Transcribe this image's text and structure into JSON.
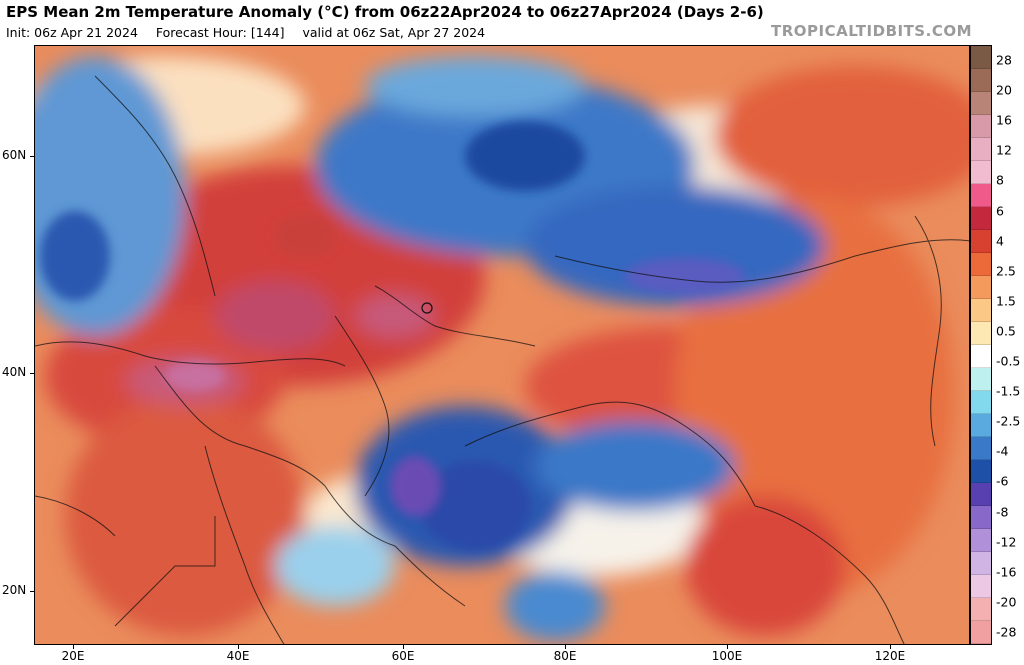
{
  "header": {
    "title": "EPS Mean 2m Temperature Anomaly (°C) from 06z22Apr2024 to 06z27Apr2024 (Days 2-6)",
    "init": "Init: 06z Apr 21 2024",
    "forecast_hour": "Forecast Hour: [144]",
    "valid": "valid at 06z Sat, Apr 27 2024",
    "brand": "TROPICALTIDBITS.COM"
  },
  "axes": {
    "lat_labels": [
      "60N",
      "40N",
      "20N"
    ],
    "lon_labels": [
      "20E",
      "40E",
      "60E",
      "80E",
      "100E",
      "120E"
    ]
  },
  "colorbar": {
    "labels": [
      "28",
      "20",
      "16",
      "12",
      "8",
      "6",
      "4",
      "2.5",
      "1.5",
      "0.5",
      "-0.5",
      "-1.5",
      "-2.5",
      "-4",
      "-6",
      "-8",
      "-12",
      "-16",
      "-20",
      "-28"
    ],
    "colors": [
      "#7a5a45",
      "#9c6b58",
      "#b88478",
      "#d89aa8",
      "#e8aec2",
      "#f2bcd0",
      "#f05a8a",
      "#c4283c",
      "#d84030",
      "#ec6a3a",
      "#f49a5c",
      "#fbc886",
      "#fde8b4",
      "#ffffff",
      "#bff0f0",
      "#82d8ec",
      "#5aaae0",
      "#3a78c8",
      "#1e50a8",
      "#5840b0",
      "#8868c8",
      "#b090d8",
      "#d0b4e4",
      "#ecc8e4",
      "#f4b0b0",
      "#f0a0a0"
    ]
  },
  "map": {
    "region": "Europe / Middle East / Asia",
    "palette": {
      "warm_strong": "#c8323a",
      "warm": "#e0603c",
      "warm_light": "#f2a070",
      "neutral": "#fbe8cf",
      "cool_light": "#bfe4f2",
      "cool": "#4a8ad0",
      "cool_strong": "#1f4aa0",
      "extreme_warm": "#c85a78",
      "extreme_cool": "#6a4cb4"
    }
  }
}
